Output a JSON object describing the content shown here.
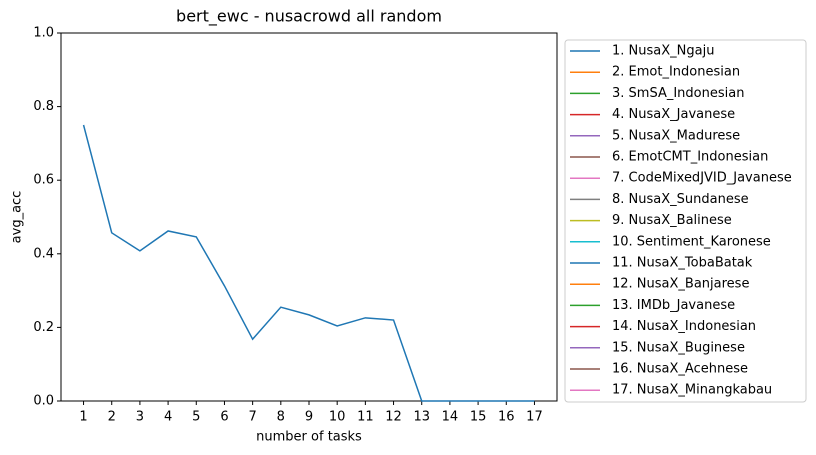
{
  "chart_data": {
    "type": "line",
    "title": "bert_ewc - nusacrowd all random",
    "xlabel": "number of tasks",
    "ylabel": "avg_acc",
    "x": [
      1,
      2,
      3,
      4,
      5,
      6,
      7,
      8,
      9,
      10,
      11,
      12,
      13,
      14,
      15,
      16,
      17
    ],
    "xlim": [
      0.2,
      17.8
    ],
    "xticks": [
      1,
      2,
      3,
      4,
      5,
      6,
      7,
      8,
      9,
      10,
      11,
      12,
      13,
      14,
      15,
      16,
      17
    ],
    "ylim": [
      0,
      1
    ],
    "yticks": [
      {
        "value": 0,
        "label": "0.0"
      },
      {
        "value": 0.2,
        "label": "0.2"
      },
      {
        "value": 0.4,
        "label": "0.4"
      },
      {
        "value": 0.6,
        "label": "0.6"
      },
      {
        "value": 0.8,
        "label": "0.8"
      },
      {
        "value": 1,
        "label": "1.0"
      }
    ],
    "grid": false,
    "legend": "outside right",
    "series": [
      {
        "name": "1. NusaX_Ngaju",
        "color": "#1f77b4",
        "values": [
          0.75,
          0.457,
          0.408,
          0.462,
          0.446,
          0.313,
          0.168,
          0.255,
          0.234,
          0.204,
          0.226,
          0.22,
          0,
          0,
          0,
          0,
          0
        ]
      },
      {
        "name": "2. Emot_Indonesian",
        "color": "#ff7f0e",
        "values": [
          null,
          null,
          null,
          null,
          null,
          null,
          null,
          null,
          null,
          null,
          null,
          null,
          null,
          null,
          null,
          null,
          null
        ]
      },
      {
        "name": "3. SmSA_Indonesian",
        "color": "#2ca02c",
        "values": [
          null,
          null,
          null,
          null,
          null,
          null,
          null,
          null,
          null,
          null,
          null,
          null,
          null,
          null,
          null,
          null,
          null
        ]
      },
      {
        "name": "4. NusaX_Javanese",
        "color": "#d62728",
        "values": [
          null,
          null,
          null,
          null,
          null,
          null,
          null,
          null,
          null,
          null,
          null,
          null,
          null,
          null,
          null,
          null,
          null
        ]
      },
      {
        "name": "5. NusaX_Madurese",
        "color": "#9467bd",
        "values": [
          null,
          null,
          null,
          null,
          null,
          null,
          null,
          null,
          null,
          null,
          null,
          null,
          null,
          null,
          null,
          null,
          null
        ]
      },
      {
        "name": "6. EmotCMT_Indonesian",
        "color": "#8c564b",
        "values": [
          null,
          null,
          null,
          null,
          null,
          null,
          null,
          null,
          null,
          null,
          null,
          null,
          null,
          null,
          null,
          null,
          null
        ]
      },
      {
        "name": "7. CodeMixedJVID_Javanese",
        "color": "#e377c2",
        "values": [
          null,
          null,
          null,
          null,
          null,
          null,
          null,
          null,
          null,
          null,
          null,
          null,
          null,
          null,
          null,
          null,
          null
        ]
      },
      {
        "name": "8. NusaX_Sundanese",
        "color": "#7f7f7f",
        "values": [
          null,
          null,
          null,
          null,
          null,
          null,
          null,
          null,
          null,
          null,
          null,
          null,
          null,
          null,
          null,
          null,
          null
        ]
      },
      {
        "name": "9. NusaX_Balinese",
        "color": "#bcbd22",
        "values": [
          null,
          null,
          null,
          null,
          null,
          null,
          null,
          null,
          null,
          null,
          null,
          null,
          null,
          null,
          null,
          null,
          null
        ]
      },
      {
        "name": "10. Sentiment_Karonese",
        "color": "#17becf",
        "values": [
          null,
          null,
          null,
          null,
          null,
          null,
          null,
          null,
          null,
          null,
          null,
          null,
          null,
          null,
          null,
          null,
          null
        ]
      },
      {
        "name": "11. NusaX_TobaBatak",
        "color": "#1f77b4",
        "values": [
          null,
          null,
          null,
          null,
          null,
          null,
          null,
          null,
          null,
          null,
          null,
          null,
          null,
          null,
          null,
          null,
          null
        ]
      },
      {
        "name": "12. NusaX_Banjarese",
        "color": "#ff7f0e",
        "values": [
          null,
          null,
          null,
          null,
          null,
          null,
          null,
          null,
          null,
          null,
          null,
          null,
          null,
          null,
          null,
          null,
          null
        ]
      },
      {
        "name": "13. IMDb_Javanese",
        "color": "#2ca02c",
        "values": [
          null,
          null,
          null,
          null,
          null,
          null,
          null,
          null,
          null,
          null,
          null,
          null,
          null,
          null,
          null,
          null,
          null
        ]
      },
      {
        "name": "14. NusaX_Indonesian",
        "color": "#d62728",
        "values": [
          null,
          null,
          null,
          null,
          null,
          null,
          null,
          null,
          null,
          null,
          null,
          null,
          null,
          null,
          null,
          null,
          null
        ]
      },
      {
        "name": "15. NusaX_Buginese",
        "color": "#9467bd",
        "values": [
          null,
          null,
          null,
          null,
          null,
          null,
          null,
          null,
          null,
          null,
          null,
          null,
          null,
          null,
          null,
          null,
          null
        ]
      },
      {
        "name": "16. NusaX_Acehnese",
        "color": "#8c564b",
        "values": [
          null,
          null,
          null,
          null,
          null,
          null,
          null,
          null,
          null,
          null,
          null,
          null,
          null,
          null,
          null,
          null,
          null
        ]
      },
      {
        "name": "17. NusaX_Minangkabau",
        "color": "#e377c2",
        "values": [
          null,
          null,
          null,
          null,
          null,
          null,
          null,
          null,
          null,
          null,
          null,
          null,
          null,
          null,
          null,
          null,
          null
        ]
      }
    ]
  }
}
